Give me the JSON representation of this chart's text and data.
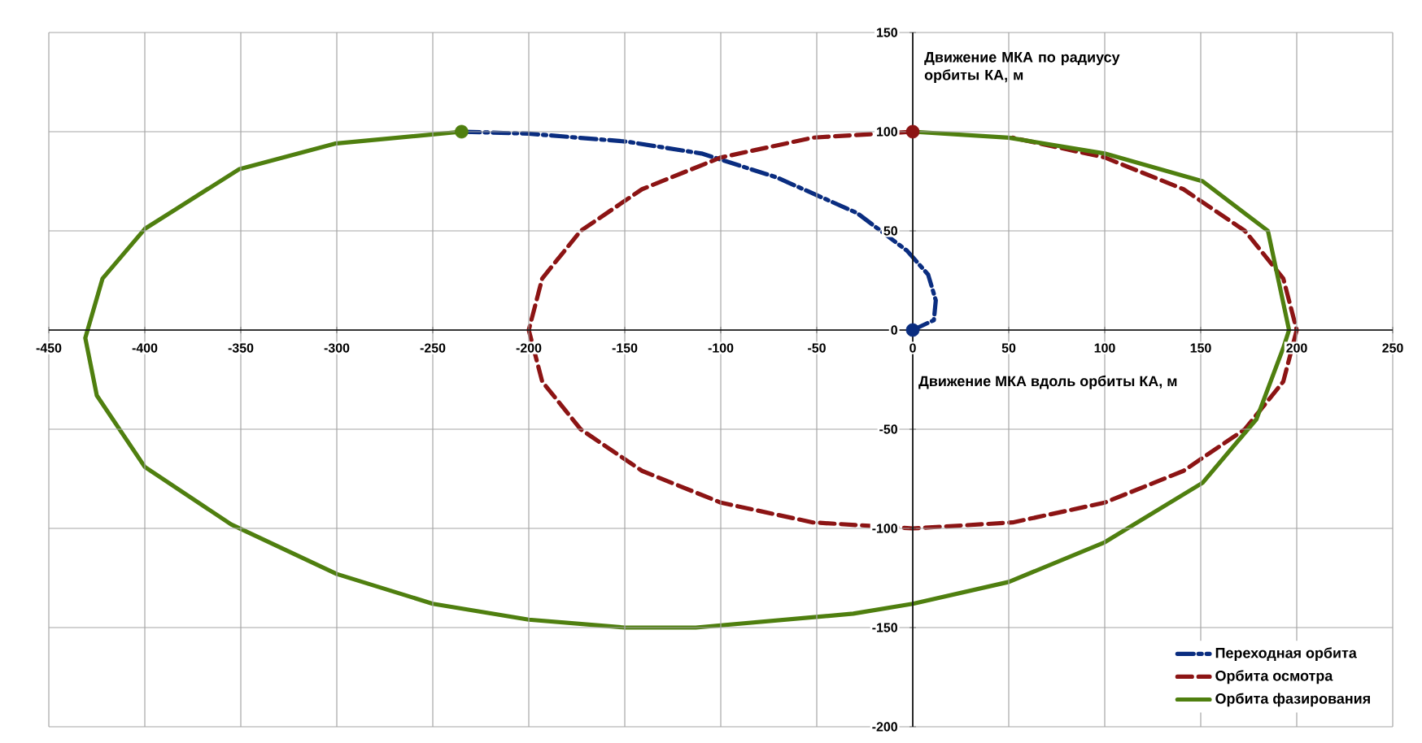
{
  "chart_data": {
    "type": "line",
    "xlabel": "Движение МКА вдоль орбиты КА, м",
    "ylabel": "Движение МКА по радиусу орбиты КА, м",
    "xlim": [
      -450,
      250
    ],
    "ylim": [
      -200,
      150
    ],
    "xticks": [
      -450,
      -400,
      -350,
      -300,
      -250,
      -200,
      -150,
      -100,
      -50,
      0,
      50,
      100,
      150,
      200,
      250
    ],
    "yticks": [
      -200,
      -150,
      -100,
      -50,
      0,
      50,
      100,
      150
    ],
    "grid": true,
    "legend": "bottom right",
    "marker": "none",
    "series": [
      {
        "name": "Переходная орбита",
        "color": "#0a2d80",
        "line_style": "dashdot",
        "x": [
          0,
          11,
          12,
          8,
          -3,
          -29,
          -71,
          -110,
          -149,
          -200,
          -235
        ],
        "values": [
          0,
          5,
          15,
          28,
          40,
          59,
          77,
          89,
          95,
          99,
          100
        ]
      },
      {
        "name": "Орбита осмотра",
        "color": "#8c1414",
        "line_style": "dashed",
        "x": [
          0,
          -52,
          -100,
          -141,
          -173,
          -193,
          -200,
          -193,
          -173,
          -141,
          -100,
          -52,
          0,
          52,
          100,
          141,
          173,
          193,
          200,
          193,
          173,
          141,
          100,
          52
        ],
        "values": [
          100,
          97,
          87,
          71,
          50,
          26,
          0,
          -26,
          -50,
          -71,
          -87,
          -97,
          -100,
          -97,
          -87,
          -71,
          -50,
          -26,
          0,
          26,
          50,
          71,
          87,
          97
        ]
      },
      {
        "name": "Орбита фазирования",
        "color": "#4f7f0f",
        "line_style": "solid",
        "x": [
          -235,
          -301,
          -351,
          -400,
          -422,
          -431,
          -425,
          -400,
          -355,
          -300,
          -250,
          -200,
          -150,
          -113,
          -31,
          0,
          50,
          100,
          151,
          179,
          193,
          196,
          185,
          151,
          100,
          50,
          0
        ],
        "values": [
          100,
          94,
          81,
          51,
          26,
          -4,
          -33,
          -69,
          -98,
          -123,
          -138,
          -146,
          -150,
          -150,
          -143,
          -138,
          -127,
          -107,
          -77,
          -45,
          -9,
          0,
          50,
          75,
          89,
          97,
          100
        ]
      },
      {
        "type": "scatter",
        "marker": "circle",
        "color": "#0a2d80",
        "x": [
          0
        ],
        "values": [
          0
        ]
      },
      {
        "type": "scatter",
        "marker": "circle",
        "color": "#8c1414",
        "x": [
          0
        ],
        "values": [
          100
        ]
      },
      {
        "type": "scatter",
        "marker": "circle",
        "color": "#4f7f0f",
        "x": [
          -235
        ],
        "values": [
          100
        ]
      }
    ]
  }
}
